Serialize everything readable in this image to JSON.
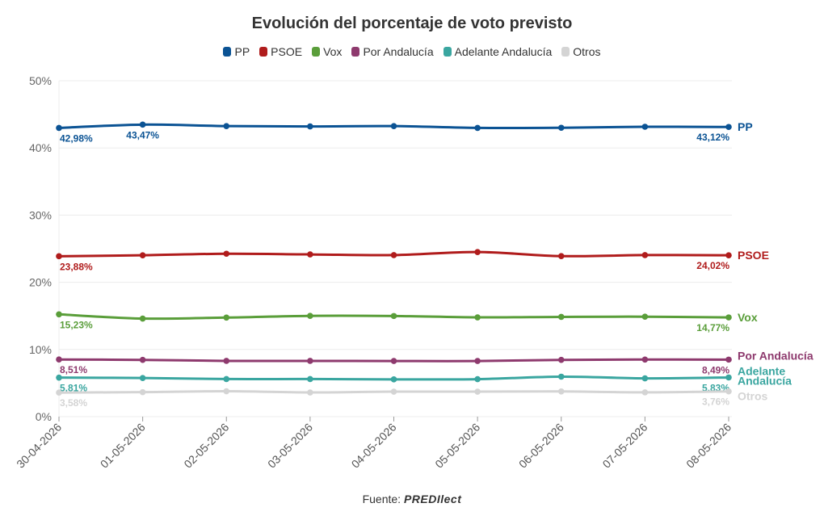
{
  "source": {
    "label": "Fuente:",
    "brand": "PREDIlect"
  },
  "chart_data": {
    "type": "line",
    "title": "Evolución del porcentaje de voto previsto",
    "xlabel": "",
    "ylabel": "",
    "ylim": [
      0,
      50
    ],
    "yticks": [
      "0%",
      "10%",
      "20%",
      "30%",
      "40%",
      "50%"
    ],
    "grid": true,
    "legend_position": "top",
    "x": [
      "30-04-2026",
      "01-05-2026",
      "02-05-2026",
      "03-05-2026",
      "04-05-2026",
      "05-05-2026",
      "06-05-2026",
      "07-05-2026",
      "08-05-2026"
    ],
    "series": [
      {
        "name": "PP",
        "end_label": "PP",
        "color": "#0b5394",
        "values": [
          42.98,
          43.47,
          43.25,
          43.2,
          43.25,
          42.98,
          43.0,
          43.15,
          43.12
        ],
        "data_labels": [
          [
            0,
            "42,98%"
          ],
          [
            1,
            "43,47%"
          ],
          [
            8,
            "43,12%"
          ]
        ]
      },
      {
        "name": "PSOE",
        "end_label": "PSOE",
        "color": "#b01c1c",
        "values": [
          23.88,
          24.02,
          24.25,
          24.15,
          24.05,
          24.5,
          23.9,
          24.05,
          24.02
        ],
        "data_labels": [
          [
            0,
            "23,88%"
          ],
          [
            8,
            "24,02%"
          ]
        ]
      },
      {
        "name": "Vox",
        "end_label": "Vox",
        "color": "#5a9e3a",
        "values": [
          15.23,
          14.6,
          14.75,
          15.0,
          14.98,
          14.78,
          14.85,
          14.88,
          14.77
        ],
        "data_labels": [
          [
            0,
            "15,23%"
          ],
          [
            8,
            "14,77%"
          ]
        ]
      },
      {
        "name": "Por Andalucía",
        "end_label": "Por Andalucía",
        "color": "#8e3a6e",
        "values": [
          8.51,
          8.45,
          8.3,
          8.3,
          8.28,
          8.28,
          8.45,
          8.5,
          8.49
        ],
        "data_labels": [
          [
            0,
            "8,51%"
          ],
          [
            8,
            "8,49%"
          ]
        ]
      },
      {
        "name": "Adelante Andalucía",
        "end_label": "Adelante Andalucía",
        "end_label_lines": [
          "Adelante",
          "Andalucía"
        ],
        "color": "#3aa6a0",
        "values": [
          5.81,
          5.75,
          5.6,
          5.6,
          5.55,
          5.58,
          5.95,
          5.7,
          5.83
        ],
        "data_labels": [
          [
            0,
            "5,81%"
          ],
          [
            8,
            "5,83%"
          ]
        ]
      },
      {
        "name": "Otros",
        "end_label": "Otros",
        "color": "#d4d4d4",
        "values": [
          3.58,
          3.65,
          3.78,
          3.6,
          3.72,
          3.72,
          3.75,
          3.62,
          3.76
        ],
        "data_labels": [
          [
            0,
            "3,58%"
          ],
          [
            8,
            "3,76%"
          ]
        ]
      }
    ]
  }
}
